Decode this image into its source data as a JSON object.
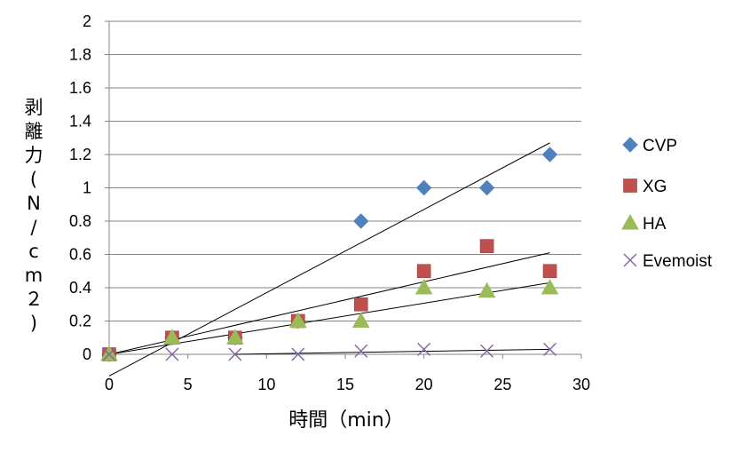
{
  "chart_data": {
    "type": "scatter",
    "xlabel": "時間（min）",
    "ylabel": "剥離力(N/cm２)",
    "xlim": [
      0,
      30
    ],
    "ylim": [
      0,
      2
    ],
    "xticks": [
      0,
      5,
      10,
      15,
      20,
      25,
      30
    ],
    "yticks": [
      0,
      0.2,
      0.4,
      0.6,
      0.8,
      1,
      1.2,
      1.4,
      1.6,
      1.8,
      2
    ],
    "grid": "horizontal",
    "legend_position": "right",
    "trendlines": "linear",
    "series": [
      {
        "name": "CVP",
        "marker": "diamond",
        "color": "#4F81BD",
        "x": [
          0,
          4,
          8,
          12,
          16,
          20,
          24,
          28
        ],
        "y": [
          0,
          0.1,
          0.1,
          0.2,
          0.8,
          1.0,
          1.0,
          1.2
        ],
        "trend": [
          [
            0,
            -0.13
          ],
          [
            28,
            1.27
          ]
        ]
      },
      {
        "name": "XG",
        "marker": "square",
        "color": "#C0504D",
        "x": [
          0,
          4,
          8,
          12,
          16,
          20,
          24,
          28
        ],
        "y": [
          0,
          0.1,
          0.1,
          0.2,
          0.3,
          0.5,
          0.65,
          0.5
        ],
        "trend": [
          [
            0,
            0.0
          ],
          [
            28,
            0.61
          ]
        ]
      },
      {
        "name": "HA",
        "marker": "triangle",
        "color": "#9BBB59",
        "x": [
          0,
          4,
          8,
          12,
          16,
          20,
          24,
          28
        ],
        "y": [
          0,
          0.1,
          0.1,
          0.2,
          0.2,
          0.4,
          0.38,
          0.4
        ],
        "trend": [
          [
            0,
            0.0
          ],
          [
            28,
            0.43
          ]
        ]
      },
      {
        "name": "Evemoist",
        "marker": "x",
        "color": "#8064A2",
        "x": [
          0,
          4,
          8,
          12,
          16,
          20,
          24,
          28
        ],
        "y": [
          0,
          0,
          0,
          0,
          0.02,
          0.03,
          0.02,
          0.03
        ],
        "trend": [
          [
            8,
            0.0
          ],
          [
            28,
            0.03
          ]
        ]
      }
    ]
  }
}
